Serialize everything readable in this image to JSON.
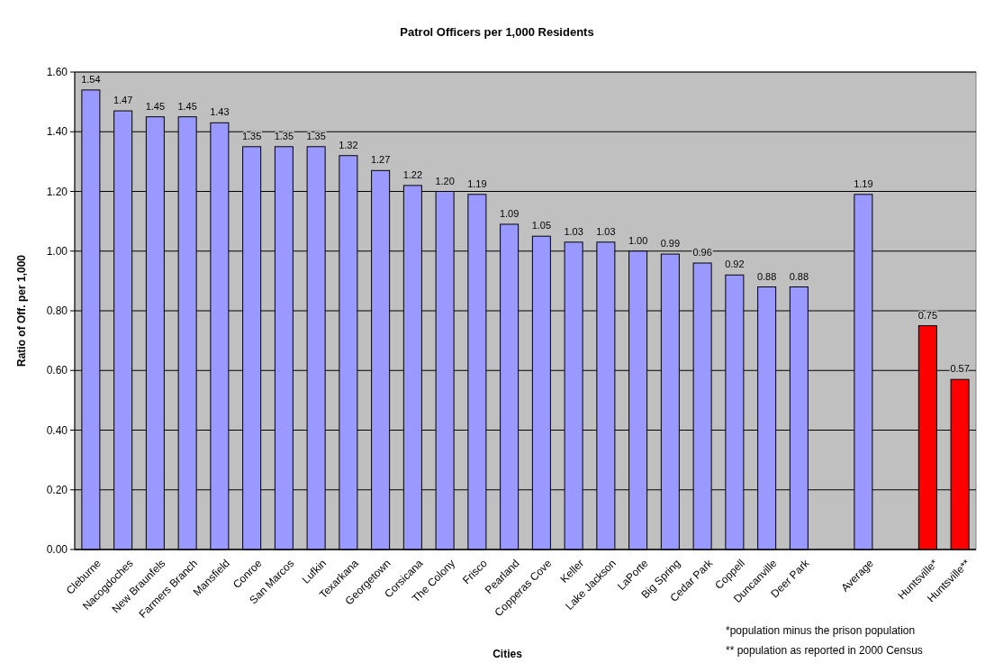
{
  "chart_data": {
    "type": "bar",
    "title": "Patrol Officers per 1,000 Residents",
    "xlabel": "Cities",
    "ylabel": "Ratio of Off. per 1,000",
    "categories": [
      "Cleburne",
      "Nacogdoches",
      "New Braunfels",
      "Farmers Branch",
      "Mansfield",
      "Conroe",
      "San Marcos",
      "Lufkin",
      "Texarkana",
      "Georgetown",
      "Corsicana",
      "The Colony",
      "Frisco",
      "Pearland",
      "Copperas Cove",
      "Keller",
      "Lake Jackson",
      "LaPorte",
      "Big Spring",
      "Cedar Park",
      "Coppell",
      "Duncanville",
      "Deer Park",
      null,
      "Average",
      null,
      "Huntsville*",
      "Huntsville**"
    ],
    "values": [
      1.54,
      1.47,
      1.45,
      1.45,
      1.43,
      1.35,
      1.35,
      1.35,
      1.32,
      1.27,
      1.22,
      1.2,
      1.19,
      1.09,
      1.05,
      1.03,
      1.03,
      1.0,
      0.99,
      0.96,
      0.92,
      0.88,
      0.88,
      null,
      1.19,
      null,
      0.75,
      0.57
    ],
    "value_labels": [
      "1.54",
      "1.47",
      "1.45",
      "1.45",
      "1.43",
      "1.35",
      "1.35",
      "1.35",
      "1.32",
      "1.27",
      "1.22",
      "1.20",
      "1.19",
      "1.09",
      "1.05",
      "1.03",
      "1.03",
      "1.00",
      "0.99",
      "0.96",
      "0.92",
      "0.88",
      "0.88",
      null,
      "1.19",
      null,
      "0.75",
      "0.57"
    ],
    "colors": [
      "#9999ff",
      "#9999ff",
      "#9999ff",
      "#9999ff",
      "#9999ff",
      "#9999ff",
      "#9999ff",
      "#9999ff",
      "#9999ff",
      "#9999ff",
      "#9999ff",
      "#9999ff",
      "#9999ff",
      "#9999ff",
      "#9999ff",
      "#9999ff",
      "#9999ff",
      "#9999ff",
      "#9999ff",
      "#9999ff",
      "#9999ff",
      "#9999ff",
      "#9999ff",
      null,
      "#9999ff",
      null,
      "#ff0000",
      "#ff0000"
    ],
    "ylim": [
      0,
      1.6
    ],
    "yticks": [
      {
        "value": 0,
        "label": "0.00"
      },
      {
        "value": 0.2,
        "label": "0.20"
      },
      {
        "value": 0.4,
        "label": "0.40"
      },
      {
        "value": 0.6,
        "label": "0.60"
      },
      {
        "value": 0.8,
        "label": "0.80"
      },
      {
        "value": 1,
        "label": "1.00"
      },
      {
        "value": 1.2,
        "label": "1.20"
      },
      {
        "value": 1.4,
        "label": "1.40"
      },
      {
        "value": 1.6,
        "label": "1.60"
      }
    ],
    "grid": "y",
    "annotations": [
      "*population minus the prison population",
      "** population as reported in 2000 Census"
    ]
  }
}
